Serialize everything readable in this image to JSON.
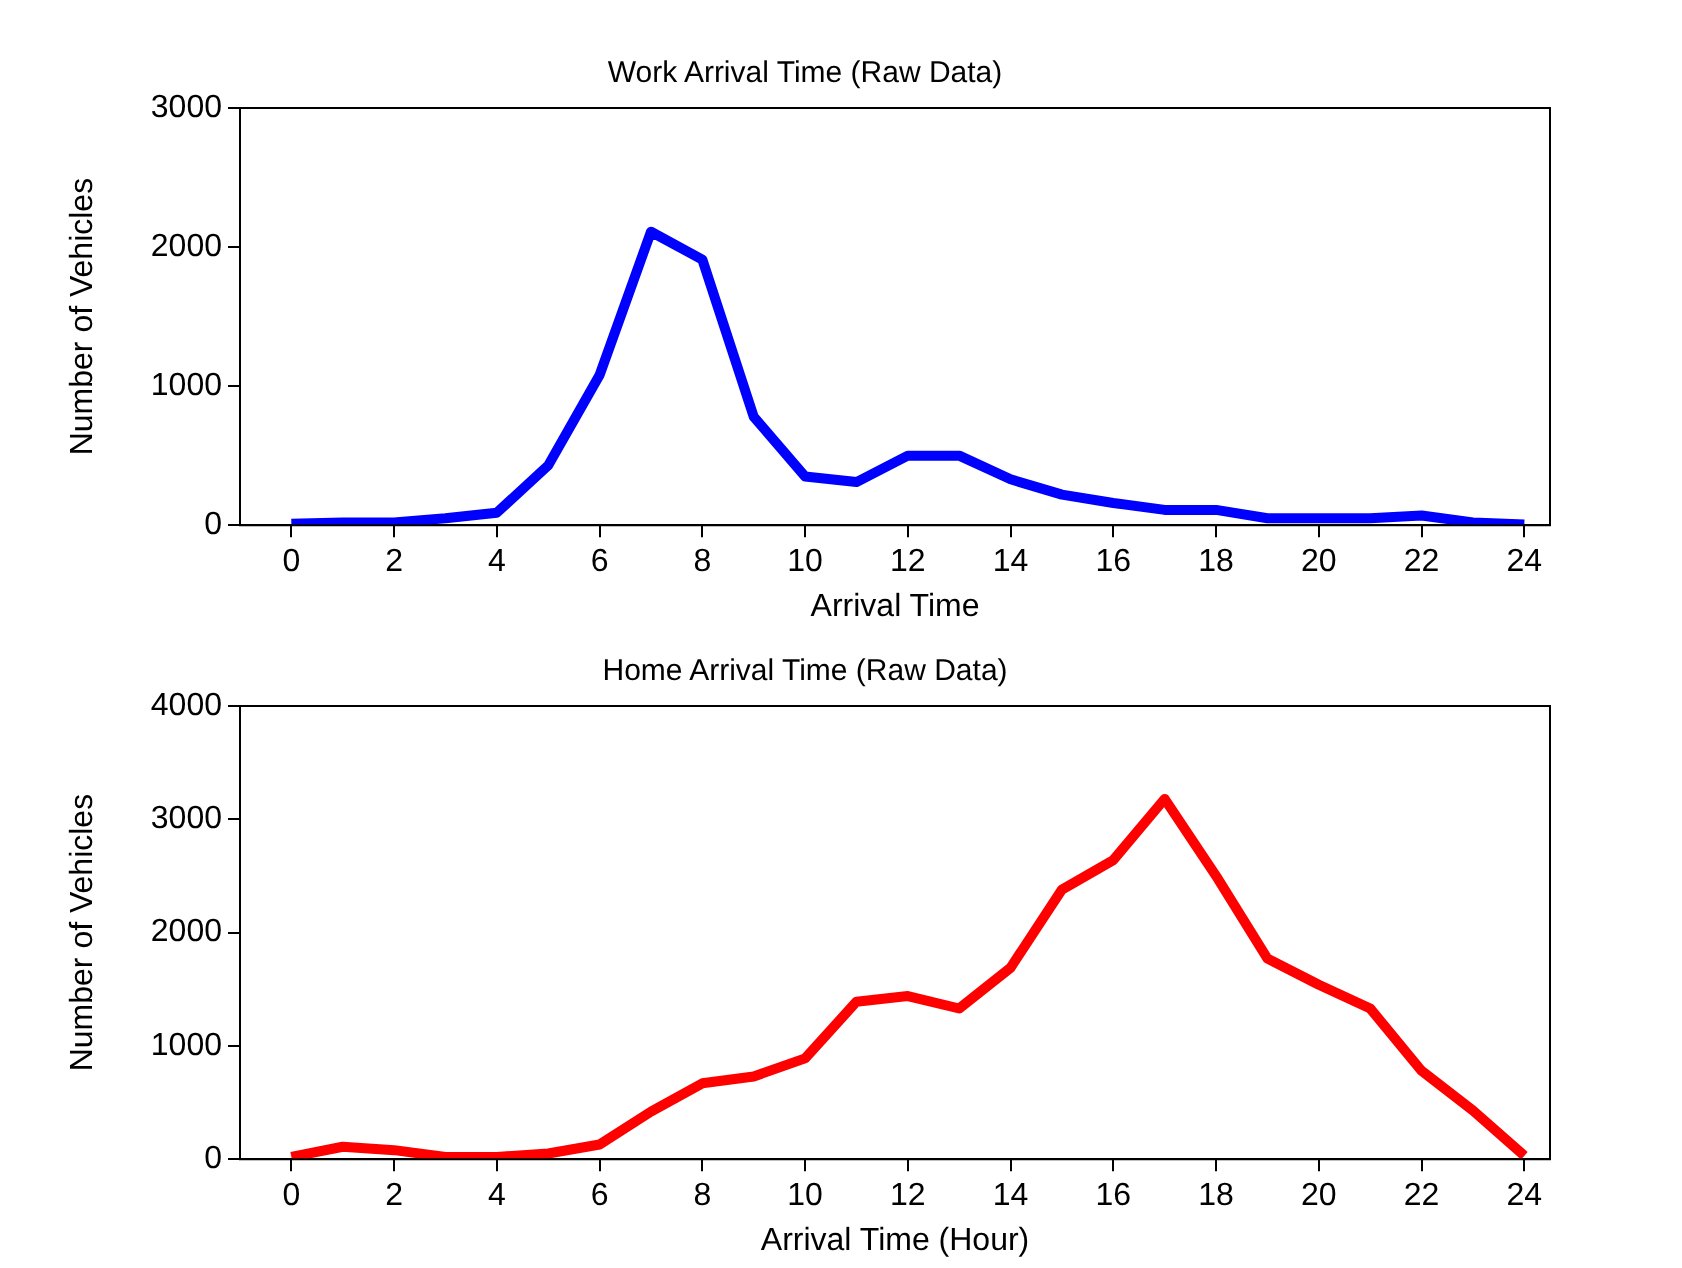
{
  "chart_data": [
    {
      "type": "line",
      "title": "Work Arrival Time (Raw Data)",
      "xlabel": "Arrival Time",
      "ylabel": "Number of Vehicles",
      "x": [
        0,
        1,
        2,
        3,
        4,
        5,
        6,
        7,
        8,
        9,
        10,
        11,
        12,
        13,
        14,
        15,
        16,
        17,
        18,
        19,
        20,
        21,
        22,
        23,
        24
      ],
      "series": [
        {
          "color": "#0000ff",
          "values": [
            10,
            20,
            20,
            50,
            90,
            430,
            1080,
            2110,
            1910,
            780,
            350,
            310,
            500,
            500,
            330,
            220,
            160,
            110,
            110,
            50,
            50,
            50,
            70,
            20,
            5
          ]
        }
      ],
      "xlim": [
        -1,
        24.5
      ],
      "xticks": [
        0,
        2,
        4,
        6,
        8,
        10,
        12,
        14,
        16,
        18,
        20,
        22,
        24
      ],
      "ylim": [
        0,
        3000
      ],
      "yticks": [
        0,
        1000,
        2000,
        3000
      ]
    },
    {
      "type": "line",
      "title": "Home Arrival Time (Raw Data)",
      "xlabel": "Arrival Time (Hour)",
      "ylabel": "Number of Vehicles",
      "x": [
        0,
        1,
        2,
        3,
        4,
        5,
        6,
        7,
        8,
        9,
        10,
        11,
        12,
        13,
        14,
        15,
        16,
        17,
        18,
        19,
        20,
        21,
        22,
        23,
        24
      ],
      "series": [
        {
          "color": "#ff0000",
          "values": [
            20,
            110,
            80,
            20,
            20,
            50,
            130,
            420,
            670,
            730,
            890,
            1390,
            1440,
            1330,
            1690,
            2380,
            2640,
            3180,
            2500,
            1770,
            1540,
            1330,
            780,
            430,
            30
          ]
        }
      ],
      "xlim": [
        -1,
        24.5
      ],
      "xticks": [
        0,
        2,
        4,
        6,
        8,
        10,
        12,
        14,
        16,
        18,
        20,
        22,
        24
      ],
      "ylim": [
        0,
        4000
      ],
      "yticks": [
        0,
        1000,
        2000,
        3000,
        4000
      ]
    }
  ]
}
